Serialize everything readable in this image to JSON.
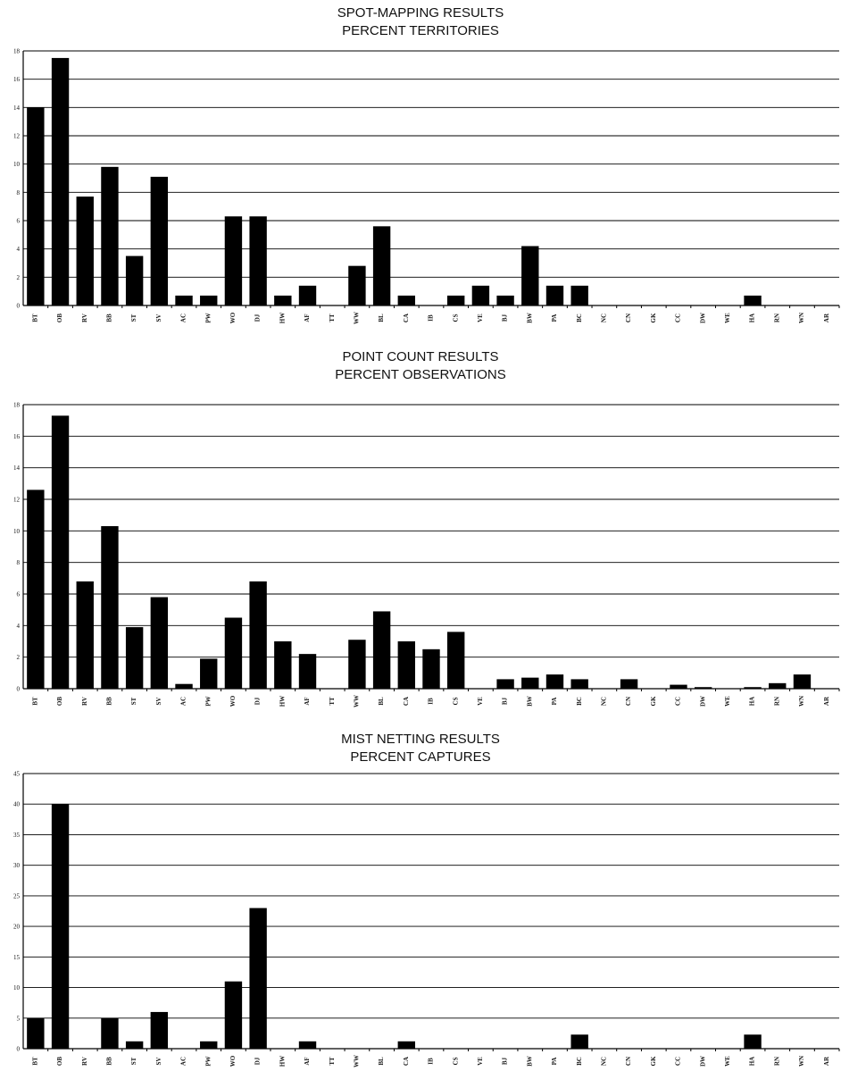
{
  "charts": [
    {
      "title_line1": "SPOT-MAPPING RESULTS",
      "title_line2": "PERCENT TERRITORIES",
      "y_ticks": [
        "0",
        "2",
        "4",
        "6",
        "8",
        "10",
        "12",
        "14",
        "16",
        "18"
      ]
    },
    {
      "title_line1": "POINT COUNT RESULTS",
      "title_line2": "PERCENT OBSERVATIONS",
      "y_ticks": [
        "0",
        "2",
        "4",
        "6",
        "8",
        "10",
        "12",
        "14",
        "16",
        "18"
      ]
    },
    {
      "title_line1": "MIST NETTING RESULTS",
      "title_line2": "PERCENT CAPTURES",
      "y_ticks": [
        "0",
        "5",
        "10",
        "15",
        "20",
        "25",
        "30",
        "35",
        "40",
        "45"
      ]
    }
  ],
  "chart_data": [
    {
      "type": "bar",
      "title": "SPOT-MAPPING RESULTS PERCENT TERRITORIES",
      "categories": [
        "BT",
        "OB",
        "RV",
        "BB",
        "ST",
        "SV",
        "AC",
        "PW",
        "WO",
        "DJ",
        "HW",
        "AF",
        "TT",
        "WW",
        "BL",
        "CA",
        "IB",
        "CS",
        "VE",
        "BJ",
        "BW",
        "PA",
        "BC",
        "NC",
        "CN",
        "GK",
        "CC",
        "DW",
        "WE",
        "HA",
        "RN",
        "WN",
        "AR"
      ],
      "values": [
        14.0,
        17.5,
        7.7,
        9.8,
        3.5,
        9.1,
        0.7,
        0.7,
        6.3,
        6.3,
        0.7,
        1.4,
        0,
        2.8,
        5.6,
        0.7,
        0,
        0.7,
        1.4,
        0.7,
        4.2,
        1.4,
        1.4,
        0,
        0,
        0,
        0,
        0,
        0,
        0.7,
        0,
        0,
        0
      ],
      "ylim": [
        0,
        18
      ],
      "grid": true
    },
    {
      "type": "bar",
      "title": "POINT COUNT RESULTS PERCENT OBSERVATIONS",
      "categories": [
        "BT",
        "OB",
        "RV",
        "BB",
        "ST",
        "SV",
        "AC",
        "PW",
        "WO",
        "DJ",
        "HW",
        "AF",
        "TT",
        "WW",
        "BL",
        "CA",
        "IB",
        "CS",
        "VE",
        "BJ",
        "BW",
        "PA",
        "BC",
        "NC",
        "CN",
        "GK",
        "CC",
        "DW",
        "WE",
        "HA",
        "RN",
        "WN",
        "AR"
      ],
      "values": [
        12.6,
        17.3,
        6.8,
        10.3,
        3.9,
        5.8,
        0.3,
        1.9,
        4.5,
        6.8,
        3.0,
        2.2,
        0,
        3.1,
        4.9,
        3.0,
        2.5,
        3.6,
        0,
        0.6,
        0.7,
        0.9,
        0.6,
        0,
        0.6,
        0,
        0.25,
        0.1,
        0,
        0.1,
        0.35,
        0.9,
        0
      ],
      "ylim": [
        0,
        18
      ],
      "grid": true
    },
    {
      "type": "bar",
      "title": "MIST NETTING RESULTS PERCENT CAPTURES",
      "categories": [
        "BT",
        "OB",
        "RV",
        "BB",
        "ST",
        "SV",
        "AC",
        "PW",
        "WO",
        "DJ",
        "HW",
        "AF",
        "TT",
        "WW",
        "BL",
        "CA",
        "IB",
        "CS",
        "VE",
        "BJ",
        "BW",
        "PA",
        "BC",
        "NC",
        "CN",
        "GK",
        "CC",
        "DW",
        "WE",
        "HA",
        "RN",
        "WN",
        "AR"
      ],
      "values": [
        5.0,
        40.0,
        0,
        5.0,
        1.2,
        6.0,
        0,
        1.2,
        11.0,
        23.0,
        0,
        1.2,
        0,
        0,
        0,
        1.2,
        0,
        0,
        0,
        0,
        0,
        0,
        2.3,
        0,
        0,
        0,
        0,
        0,
        0,
        2.3,
        0,
        0,
        0
      ],
      "ylim": [
        0,
        45
      ],
      "grid": true
    }
  ]
}
